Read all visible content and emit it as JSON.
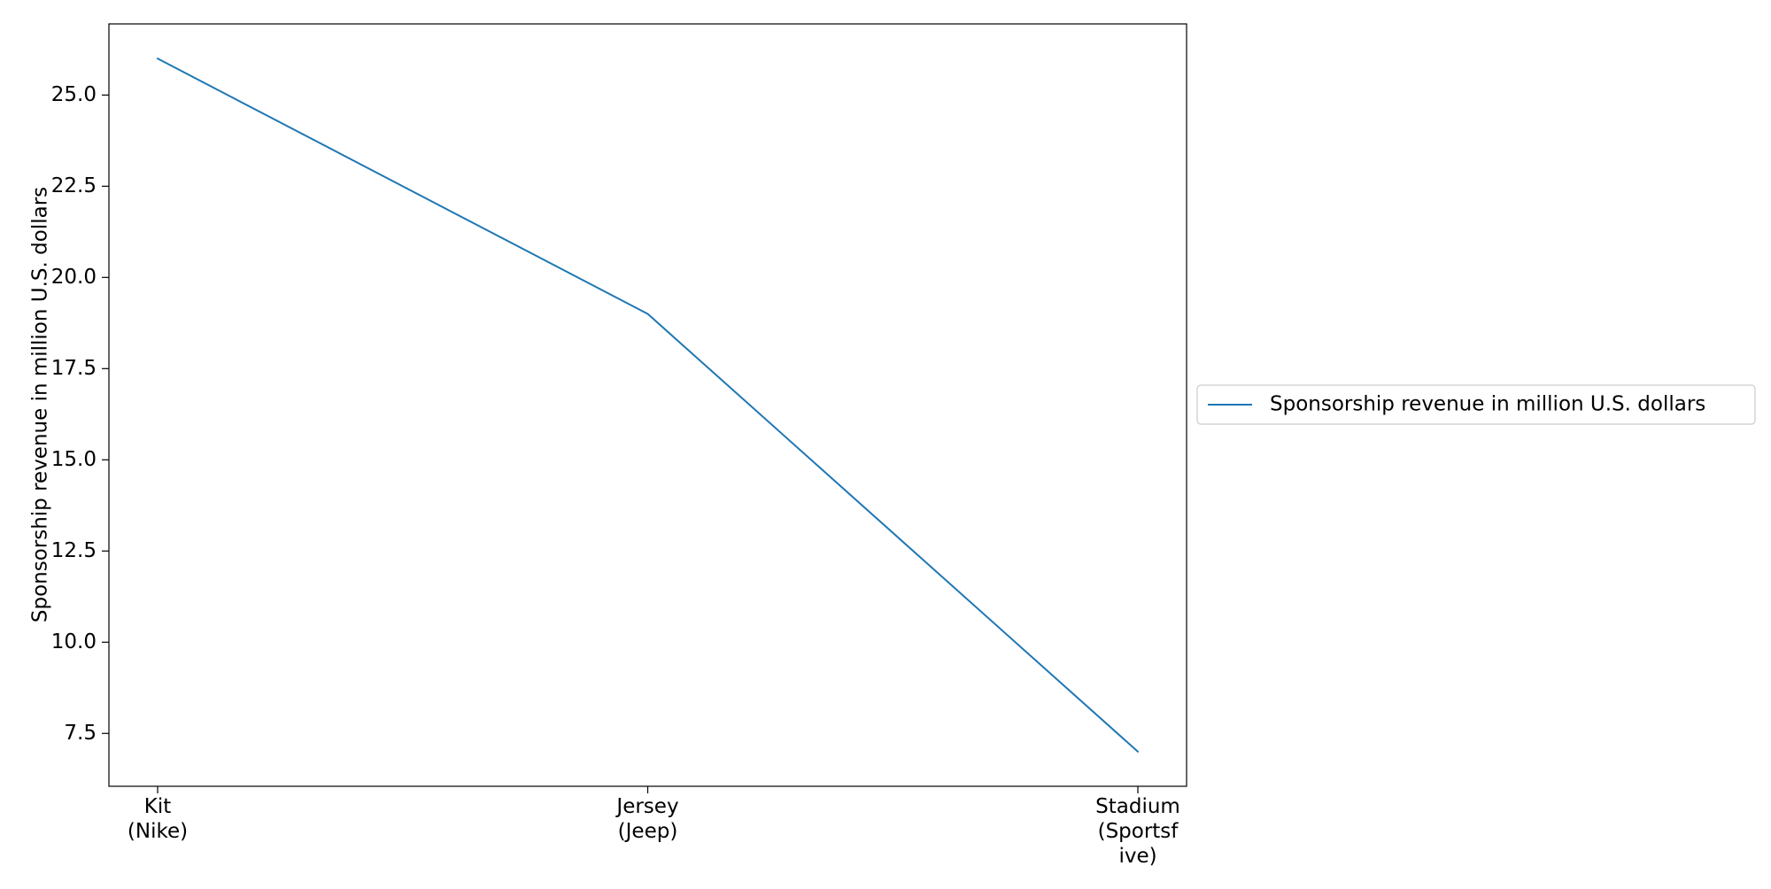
{
  "chart_data": {
    "type": "line",
    "categories": [
      [
        "Kit",
        "(Nike)"
      ],
      [
        "Jersey",
        "(Jeep)"
      ],
      [
        "Stadium",
        "(Sportsf",
        "ive)"
      ]
    ],
    "series": [
      {
        "name": "Sponsorship revenue in million U.S. dollars",
        "values": [
          26,
          19,
          7
        ],
        "color": "#1f77b4"
      }
    ],
    "title": "",
    "xlabel": "",
    "ylabel": "Sponsorship revenue in million U.S. dollars",
    "ylim": [
      6.05,
      26.95
    ],
    "yticks": [
      7.5,
      10.0,
      12.5,
      15.0,
      17.5,
      20.0,
      22.5,
      25.0
    ],
    "ytick_labels": [
      "7.5",
      "10.0",
      "12.5",
      "15.0",
      "17.5",
      "20.0",
      "22.5",
      "25.0"
    ],
    "grid": false,
    "legend_position": "right-center"
  }
}
